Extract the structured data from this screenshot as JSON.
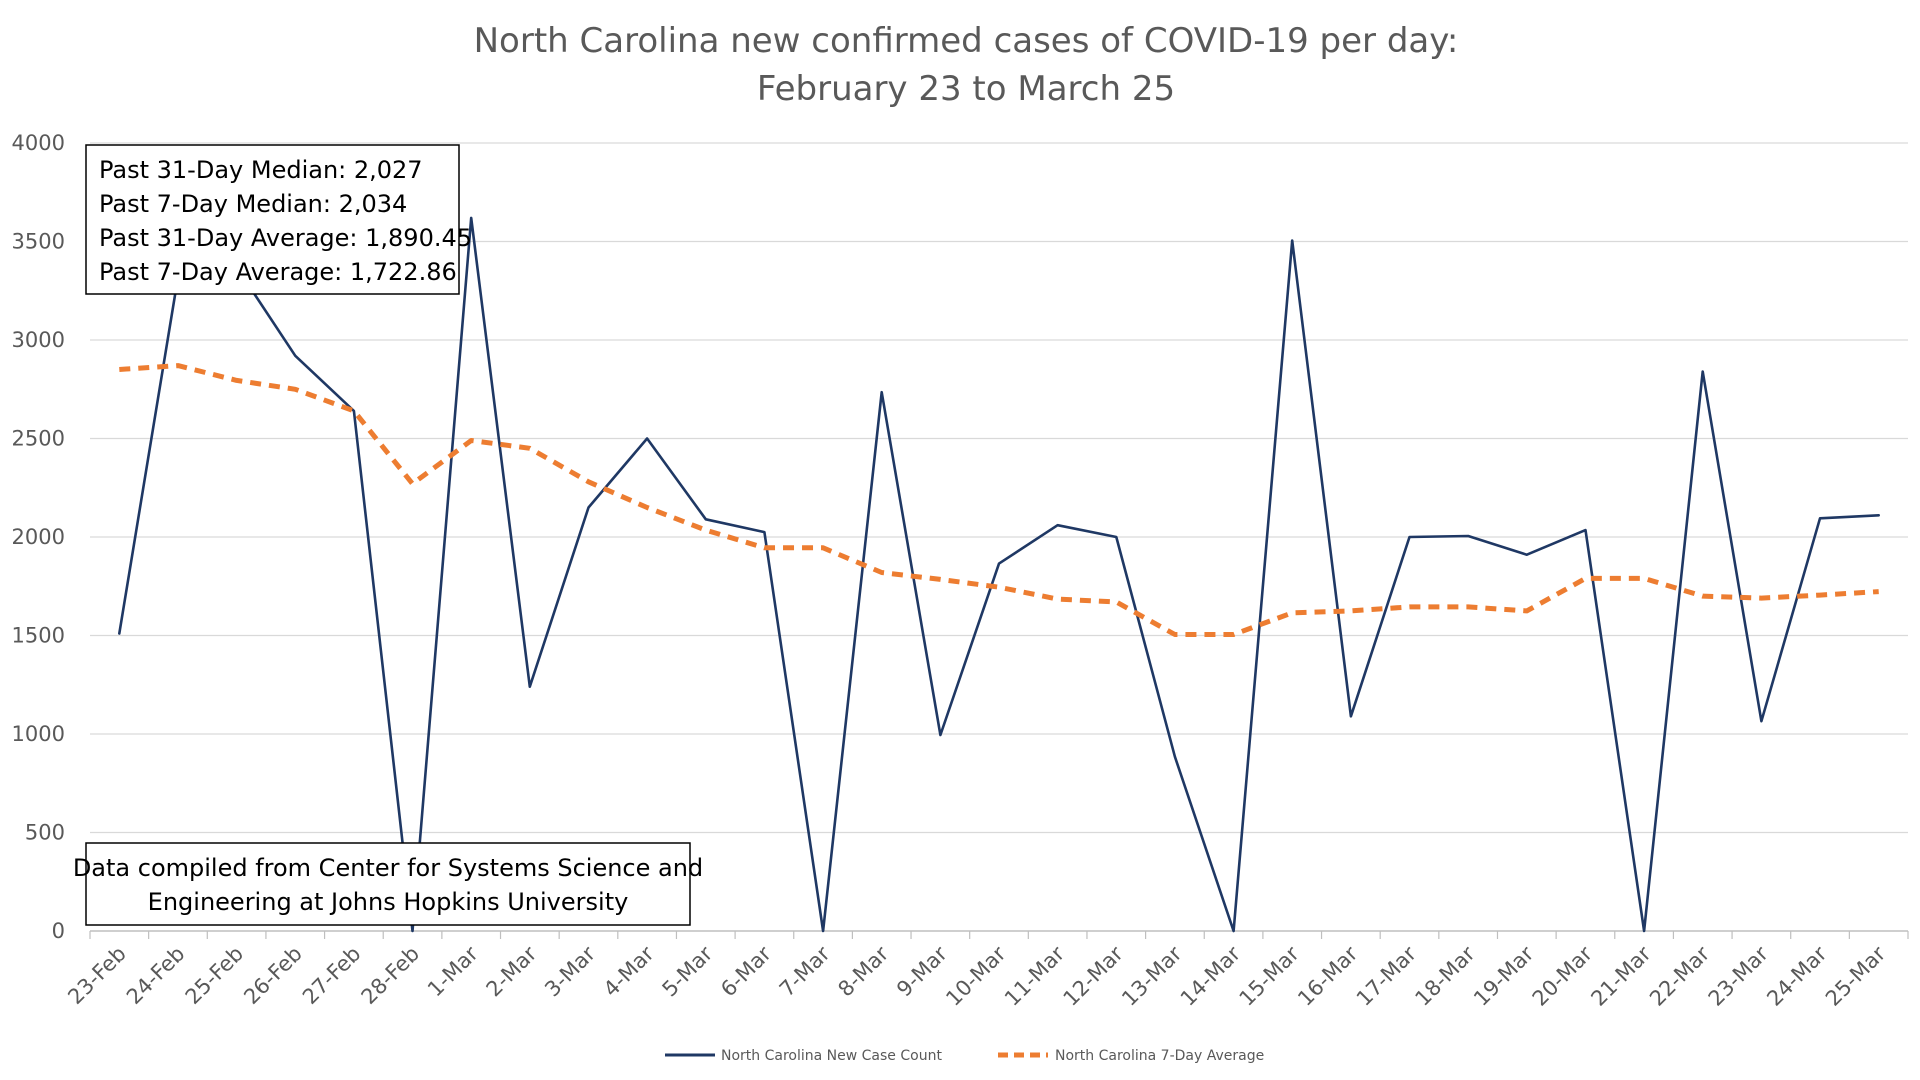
{
  "chart_data": {
    "type": "line",
    "title": "North Carolina new confirmed cases of COVID-19 per day:",
    "subtitle": "February 23 to March 25",
    "xlabel": "",
    "ylabel": "",
    "ylim": [
      0,
      4000
    ],
    "yticks": [
      "0",
      "500",
      "1000",
      "1500",
      "2000",
      "2500",
      "3000",
      "3500",
      "4000"
    ],
    "grid": "horizontal",
    "legend_position": "bottom",
    "categories": [
      "23-Feb",
      "24-Feb",
      "25-Feb",
      "26-Feb",
      "27-Feb",
      "28-Feb",
      "1-Mar",
      "2-Mar",
      "3-Mar",
      "4-Mar",
      "5-Mar",
      "6-Mar",
      "7-Mar",
      "8-Mar",
      "9-Mar",
      "10-Mar",
      "11-Mar",
      "12-Mar",
      "13-Mar",
      "14-Mar",
      "15-Mar",
      "16-Mar",
      "17-Mar",
      "18-Mar",
      "19-Mar",
      "20-Mar",
      "21-Mar",
      "22-Mar",
      "23-Mar",
      "24-Mar",
      "25-Mar"
    ],
    "series": [
      {
        "name": "North Carolina New Case Count",
        "color": "#1f3864",
        "style": "solid",
        "values": [
          1510,
          3320,
          3370,
          2920,
          2640,
          0,
          3620,
          1240,
          2150,
          2500,
          2090,
          2025,
          0,
          2735,
          995,
          1865,
          2060,
          2000,
          885,
          0,
          3505,
          1090,
          2000,
          2005,
          1910,
          2035,
          0,
          2840,
          1065,
          2095,
          2110
        ]
      },
      {
        "name": "North Carolina 7-Day Average",
        "color": "#ed7d31",
        "style": "dashed",
        "values": [
          2850,
          2870,
          2795,
          2750,
          2640,
          2270,
          2490,
          2450,
          2280,
          2150,
          2035,
          1945,
          1945,
          1820,
          1785,
          1745,
          1685,
          1670,
          1505,
          1505,
          1615,
          1625,
          1645,
          1645,
          1625,
          1790,
          1790,
          1700,
          1690,
          1705,
          1722.86
        ]
      }
    ],
    "annotations": {
      "stats": [
        "Past 31-Day Median: 2,027",
        "Past 7-Day Median: 2,034",
        "Past 31-Day Average: 1,890.45",
        "Past 7-Day Average: 1,722.86"
      ],
      "source": [
        "Data compiled from Center for Systems Science and",
        "Engineering at Johns Hopkins University"
      ]
    }
  }
}
